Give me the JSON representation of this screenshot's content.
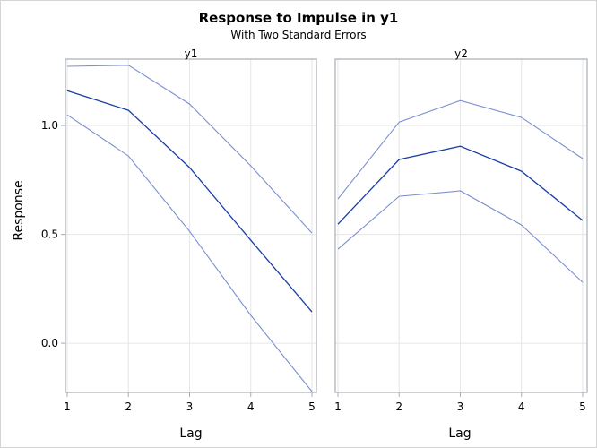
{
  "chart_data": {
    "type": "line",
    "title": "Response to Impulse in y1",
    "subtitle": "With Two Standard Errors",
    "xlabel": "Lag",
    "ylabel": "Response",
    "x": [
      1,
      2,
      3,
      4,
      5
    ],
    "xticks": [
      "1",
      "2",
      "3",
      "4",
      "5"
    ],
    "yticks": [
      "0.0",
      "0.5",
      "1.0"
    ],
    "ytick_values": [
      0.0,
      0.5,
      1.0
    ],
    "ylim": [
      -0.226,
      1.305
    ],
    "xlim": [
      1,
      5
    ],
    "grid": true,
    "colors": {
      "response": "#1a3ea8",
      "bounds": "#7b8fd1",
      "grid": "#e6e6e6",
      "frame": "#a8adb3"
    },
    "panels": [
      {
        "label": "y1",
        "series": [
          {
            "role": "upper",
            "values": [
              1.272,
              1.277,
              1.099,
              0.815,
              0.506
            ]
          },
          {
            "role": "response",
            "values": [
              1.16,
              1.07,
              0.807,
              0.473,
              0.144
            ]
          },
          {
            "role": "lower",
            "values": [
              1.049,
              0.86,
              0.514,
              0.128,
              -0.222
            ]
          }
        ]
      },
      {
        "label": "y2",
        "series": [
          {
            "role": "upper",
            "values": [
              0.663,
              1.016,
              1.115,
              1.037,
              0.848
            ]
          },
          {
            "role": "response",
            "values": [
              0.547,
              0.844,
              0.905,
              0.79,
              0.564
            ]
          },
          {
            "role": "lower",
            "values": [
              0.432,
              0.675,
              0.7,
              0.543,
              0.28
            ]
          }
        ]
      }
    ]
  }
}
